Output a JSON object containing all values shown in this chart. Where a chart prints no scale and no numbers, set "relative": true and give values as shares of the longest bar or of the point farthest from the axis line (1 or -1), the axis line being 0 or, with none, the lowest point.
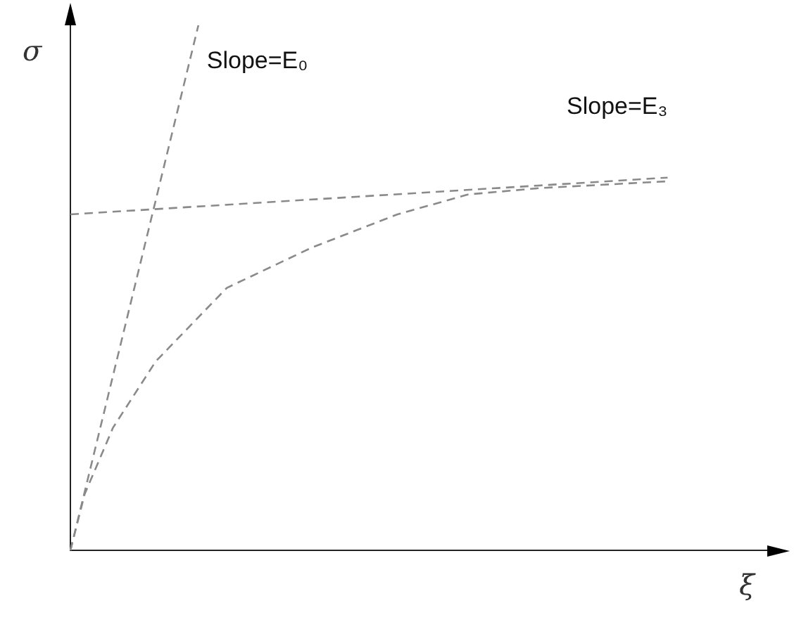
{
  "chart_data": {
    "type": "line",
    "relative": true,
    "xlabel": "ξ",
    "ylabel": "σ",
    "legend": false,
    "grid": false,
    "marker": "none",
    "line_style": "dashed",
    "categories": [
      null,
      null,
      null,
      null,
      null,
      null,
      null,
      null,
      null,
      null,
      null,
      null,
      null,
      null,
      null,
      null,
      null,
      null,
      null,
      null,
      null,
      null,
      null,
      null,
      null,
      null,
      null,
      null,
      null,
      null,
      null,
      null,
      null,
      null,
      null,
      null,
      null,
      null,
      null,
      null,
      null,
      null,
      null,
      null,
      null,
      null,
      null,
      null,
      null,
      null,
      null
    ],
    "series": [
      {
        "color": "#8a8a8a",
        "values": [
          0,
          0.107,
          null,
          0.234,
          null,
          null,
          0.36,
          null,
          null,
          null,
          null,
          0.5,
          null,
          null,
          null,
          null,
          null,
          0.577,
          null,
          null,
          null,
          null,
          null,
          0.64,
          null,
          null,
          null,
          null,
          0.678,
          null,
          null,
          null,
          null,
          0.69,
          null,
          null,
          null,
          null,
          null,
          null,
          null,
          null,
          0.703,
          null,
          null,
          null,
          null,
          null,
          null,
          null,
          null
        ]
      },
      {
        "color": "#8a8a8a",
        "values": [
          0,
          null,
          null,
          null,
          null,
          null,
          null,
          null,
          null,
          1,
          null,
          null,
          null,
          null,
          null,
          null,
          null,
          null,
          null,
          null,
          null,
          null,
          null,
          null,
          null,
          null,
          null,
          null,
          null,
          null,
          null,
          null,
          null,
          null,
          null,
          null,
          null,
          null,
          null,
          null,
          null,
          null,
          null,
          null,
          null,
          null,
          null,
          null,
          null,
          null,
          null
        ]
      },
      {
        "color": "#8a8a8a",
        "values": [
          0.64,
          null,
          null,
          null,
          null,
          null,
          null,
          null,
          null,
          null,
          null,
          null,
          null,
          null,
          null,
          null,
          null,
          null,
          null,
          null,
          null,
          null,
          null,
          null,
          null,
          null,
          null,
          null,
          null,
          null,
          null,
          null,
          null,
          null,
          null,
          null,
          null,
          null,
          null,
          null,
          null,
          null,
          0.71,
          null,
          null,
          null,
          null,
          null,
          null,
          null,
          null
        ]
      }
    ],
    "annotations": [
      "Slope=E₀",
      "Slope=E₃"
    ]
  }
}
